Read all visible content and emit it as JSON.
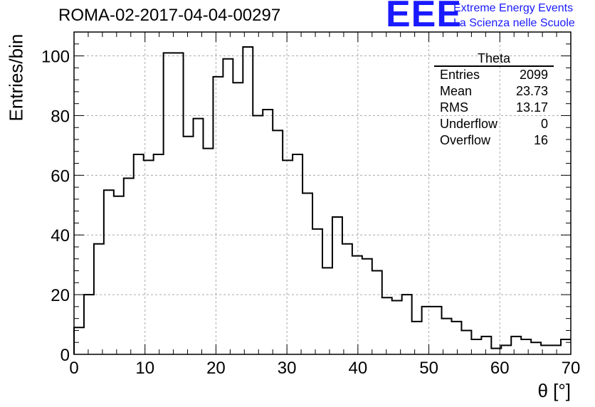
{
  "header": {
    "title": "ROMA-02-2017-04-04-00297"
  },
  "logo": {
    "mark": "EEE",
    "line1": "Extreme Energy Events",
    "line2": "La Scienza nelle Scuole"
  },
  "stats_box": {
    "title": "Theta",
    "rows": [
      {
        "label": "Entries",
        "value": "2099"
      },
      {
        "label": "Mean",
        "value": "23.73"
      },
      {
        "label": "RMS",
        "value": "13.17"
      },
      {
        "label": "Underflow",
        "value": "0"
      },
      {
        "label": "Overflow",
        "value": "16"
      }
    ]
  },
  "chart_data": {
    "type": "histogram",
    "title": "ROMA-02-2017-04-04-00297",
    "xlabel": "θ [°]",
    "ylabel": "Entries/bin",
    "xlim": [
      0,
      70
    ],
    "ylim": [
      0,
      108
    ],
    "xticks": [
      0,
      10,
      20,
      30,
      40,
      50,
      60,
      70
    ],
    "yticks": [
      0,
      20,
      40,
      60,
      80,
      100
    ],
    "grid": true,
    "legend": "top-right",
    "bin_edges_start": 0,
    "bin_width": 1.4,
    "values": [
      9,
      20,
      37,
      55,
      53,
      59,
      67,
      65,
      67,
      101,
      101,
      73,
      79,
      69,
      93,
      99,
      91,
      103,
      80,
      82,
      75,
      65,
      67,
      54,
      42,
      29,
      46,
      37,
      33,
      32,
      28,
      19,
      18,
      20,
      11,
      16,
      16,
      12,
      11,
      8,
      5,
      6,
      2,
      3,
      6,
      5,
      4,
      3,
      3,
      5
    ],
    "line_color": "#000000"
  }
}
